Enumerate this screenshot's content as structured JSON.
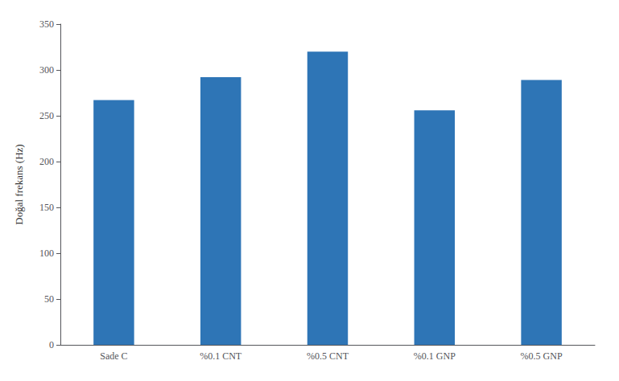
{
  "chart_data": {
    "type": "bar",
    "categories": [
      "Sade C",
      "%0.1 CNT",
      "%0.5 CNT",
      "%0.1 GNP",
      "%0.5 GNP"
    ],
    "values": [
      267,
      292,
      320,
      256,
      289
    ],
    "color": "#2E75B6",
    "ylabel": "Doğal frekans (Hz)",
    "ylim": [
      0,
      350
    ],
    "yticks": [
      0,
      50,
      100,
      150,
      200,
      250,
      300,
      350
    ],
    "grid": false
  }
}
